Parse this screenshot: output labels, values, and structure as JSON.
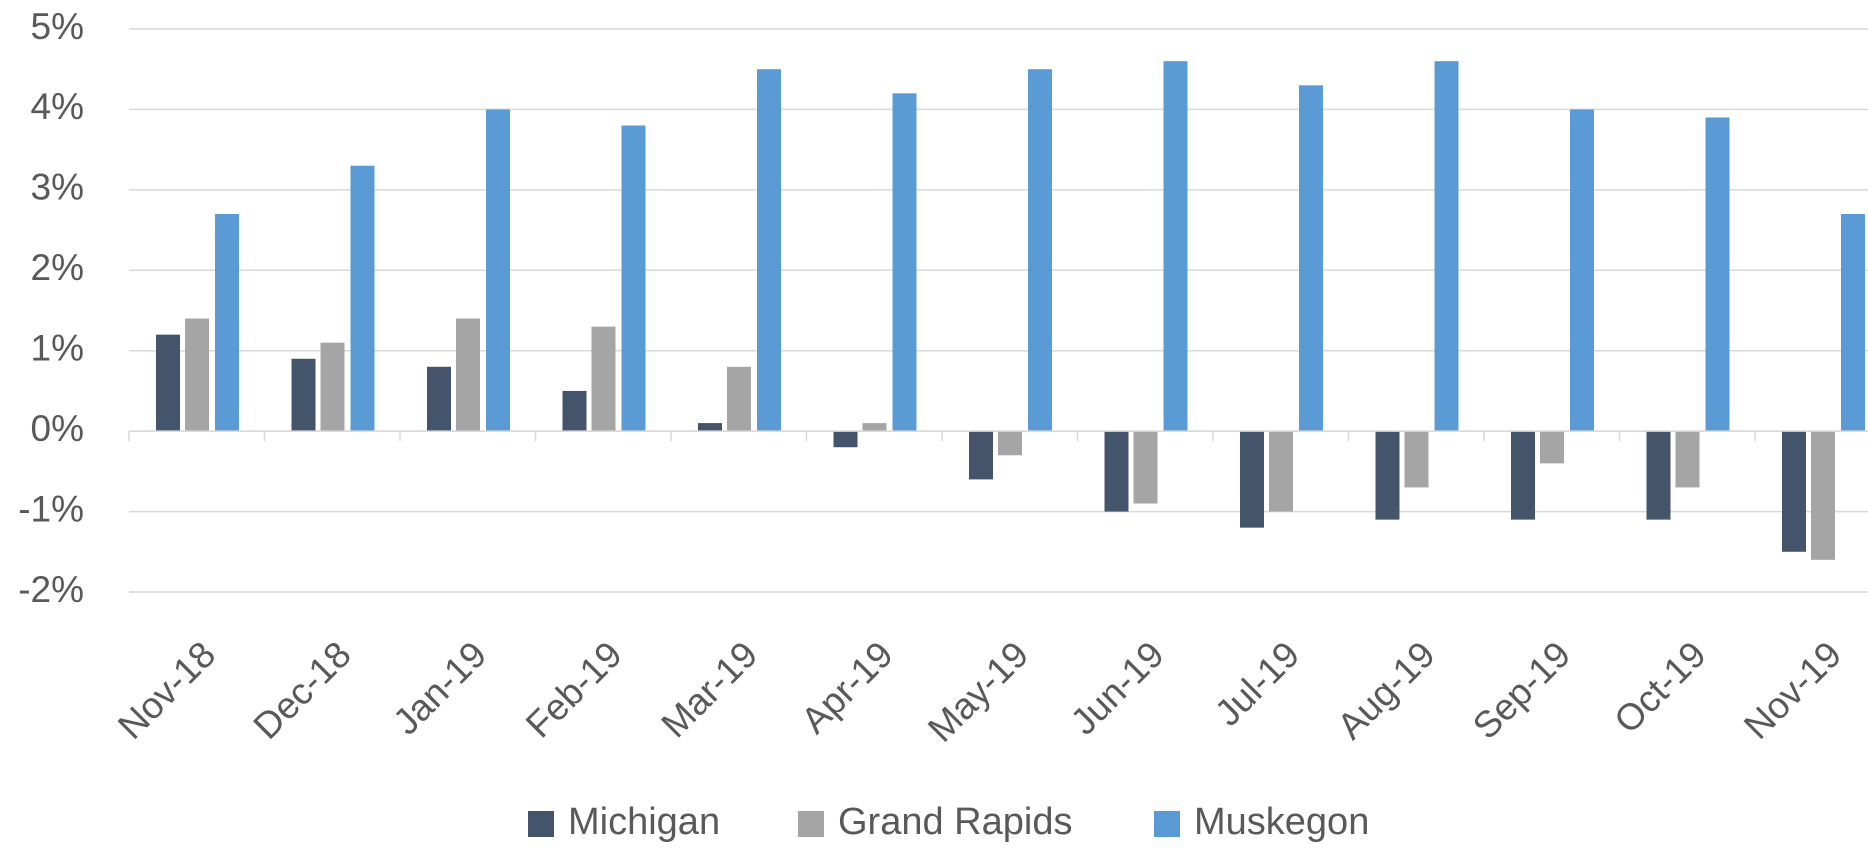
{
  "chart_data": {
    "type": "bar",
    "categories": [
      "Nov-18",
      "Dec-18",
      "Jan-19",
      "Feb-19",
      "Mar-19",
      "Apr-19",
      "May-19",
      "Jun-19",
      "Jul-19",
      "Aug-19",
      "Sep-19",
      "Oct-19",
      "Nov-19"
    ],
    "series": [
      {
        "name": "Michigan",
        "color": "#44546a",
        "values": [
          1.2,
          0.9,
          0.8,
          0.5,
          0.1,
          -0.2,
          -0.6,
          -1.0,
          -1.2,
          -1.1,
          -1.1,
          -1.1,
          -1.5
        ]
      },
      {
        "name": "Grand Rapids",
        "color": "#a5a5a5",
        "values": [
          1.4,
          1.1,
          1.4,
          1.3,
          0.8,
          0.1,
          -0.3,
          -0.9,
          -1.0,
          -0.7,
          -0.4,
          -0.7,
          -1.6
        ]
      },
      {
        "name": "Muskegon",
        "color": "#5b9bd5",
        "values": [
          2.7,
          3.3,
          4.0,
          3.8,
          4.5,
          4.2,
          4.5,
          4.6,
          4.3,
          4.6,
          4.0,
          3.9,
          2.7
        ]
      }
    ],
    "ylim": [
      -2,
      5
    ],
    "yticks": [
      {
        "value": -2,
        "label": "-2%"
      },
      {
        "value": -1,
        "label": "-1%"
      },
      {
        "value": 0,
        "label": "0%"
      },
      {
        "value": 1,
        "label": "1%"
      },
      {
        "value": 2,
        "label": "2%"
      },
      {
        "value": 3,
        "label": "3%"
      },
      {
        "value": 4,
        "label": "4%"
      },
      {
        "value": 5,
        "label": "5%"
      }
    ],
    "grid": true,
    "legend": "bottom"
  }
}
